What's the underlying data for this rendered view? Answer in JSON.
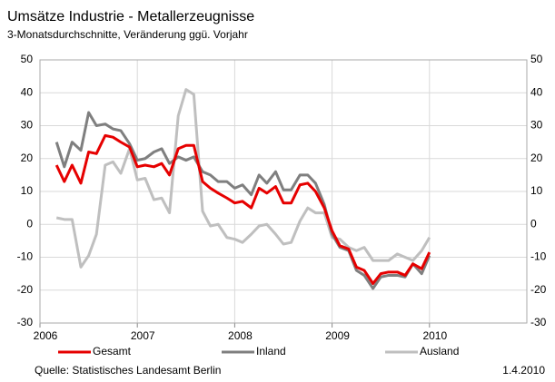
{
  "chart_data": {
    "type": "line",
    "title": "Umsätze Industrie - Metallerzeugnisse",
    "subtitle": "3-Monatsdurchschnitte, Veränderung ggü. Vorjahr",
    "source": "Quelle: Statistisches Landesamt Berlin",
    "date": "1.4.2010",
    "xlim": [
      2006,
      2011
    ],
    "xticks": [
      2006,
      2007,
      2008,
      2009,
      2010
    ],
    "ylim": [
      -30,
      50
    ],
    "yticks": [
      -30,
      -20,
      -10,
      0,
      10,
      20,
      30,
      40,
      50
    ],
    "grid": true,
    "legend": "bottom",
    "x": [
      2006.17,
      2006.25,
      2006.33,
      2006.42,
      2006.5,
      2006.58,
      2006.67,
      2006.75,
      2006.83,
      2006.92,
      2007.0,
      2007.08,
      2007.17,
      2007.25,
      2007.33,
      2007.42,
      2007.5,
      2007.58,
      2007.67,
      2007.75,
      2007.83,
      2007.92,
      2008.0,
      2008.08,
      2008.17,
      2008.25,
      2008.33,
      2008.42,
      2008.5,
      2008.58,
      2008.67,
      2008.75,
      2008.83,
      2008.92,
      2009.0,
      2009.08,
      2009.17,
      2009.25,
      2009.33,
      2009.42,
      2009.5,
      2009.58,
      2009.67,
      2009.75,
      2009.83,
      2009.92,
      2010.0
    ],
    "series": [
      {
        "name": "Ausland",
        "color": "#bfbfbf",
        "values": [
          2,
          1.5,
          1.5,
          -13,
          -9.5,
          -3,
          18,
          19,
          15.5,
          23,
          13.5,
          14,
          7.5,
          8,
          3.5,
          33,
          41,
          39.5,
          4,
          -0.5,
          0,
          -4,
          -4.5,
          -5.5,
          -3,
          -0.5,
          0,
          -3,
          -6,
          -5.5,
          1,
          5,
          3.5,
          3.5,
          -4,
          -4.5,
          -7,
          -8,
          -7,
          -11,
          -11,
          -11,
          -9,
          -10,
          -11,
          -8,
          -4
        ]
      },
      {
        "name": "Inland",
        "color": "#7f7f7f",
        "values": [
          25,
          17.5,
          25,
          22.5,
          34,
          30,
          30.5,
          29,
          28.5,
          24.5,
          19.5,
          20,
          22,
          23,
          18.5,
          20.5,
          19.5,
          20.5,
          16,
          15,
          13,
          13,
          11,
          12,
          9,
          15,
          12.5,
          16,
          10.5,
          10.5,
          15,
          15,
          12.5,
          6,
          -3,
          -7,
          -8,
          -14,
          -15.5,
          -19.5,
          -16,
          -15.5,
          -15.5,
          -16,
          -12,
          -15,
          -9.5
        ]
      },
      {
        "name": "Gesamt",
        "color": "#e60000",
        "values": [
          18,
          13,
          18,
          12.5,
          22,
          21.5,
          27,
          26.5,
          25,
          23.5,
          17.5,
          18,
          17.5,
          18.5,
          15,
          23,
          24,
          24,
          13,
          11,
          9.5,
          8,
          6.5,
          7,
          5,
          11,
          9.5,
          11.5,
          6.5,
          6.5,
          12,
          12.5,
          10,
          5,
          -2,
          -6.5,
          -7.5,
          -13,
          -14,
          -18,
          -15,
          -14.5,
          -14.5,
          -15.5,
          -12,
          -13.5,
          -8.5
        ]
      }
    ]
  }
}
